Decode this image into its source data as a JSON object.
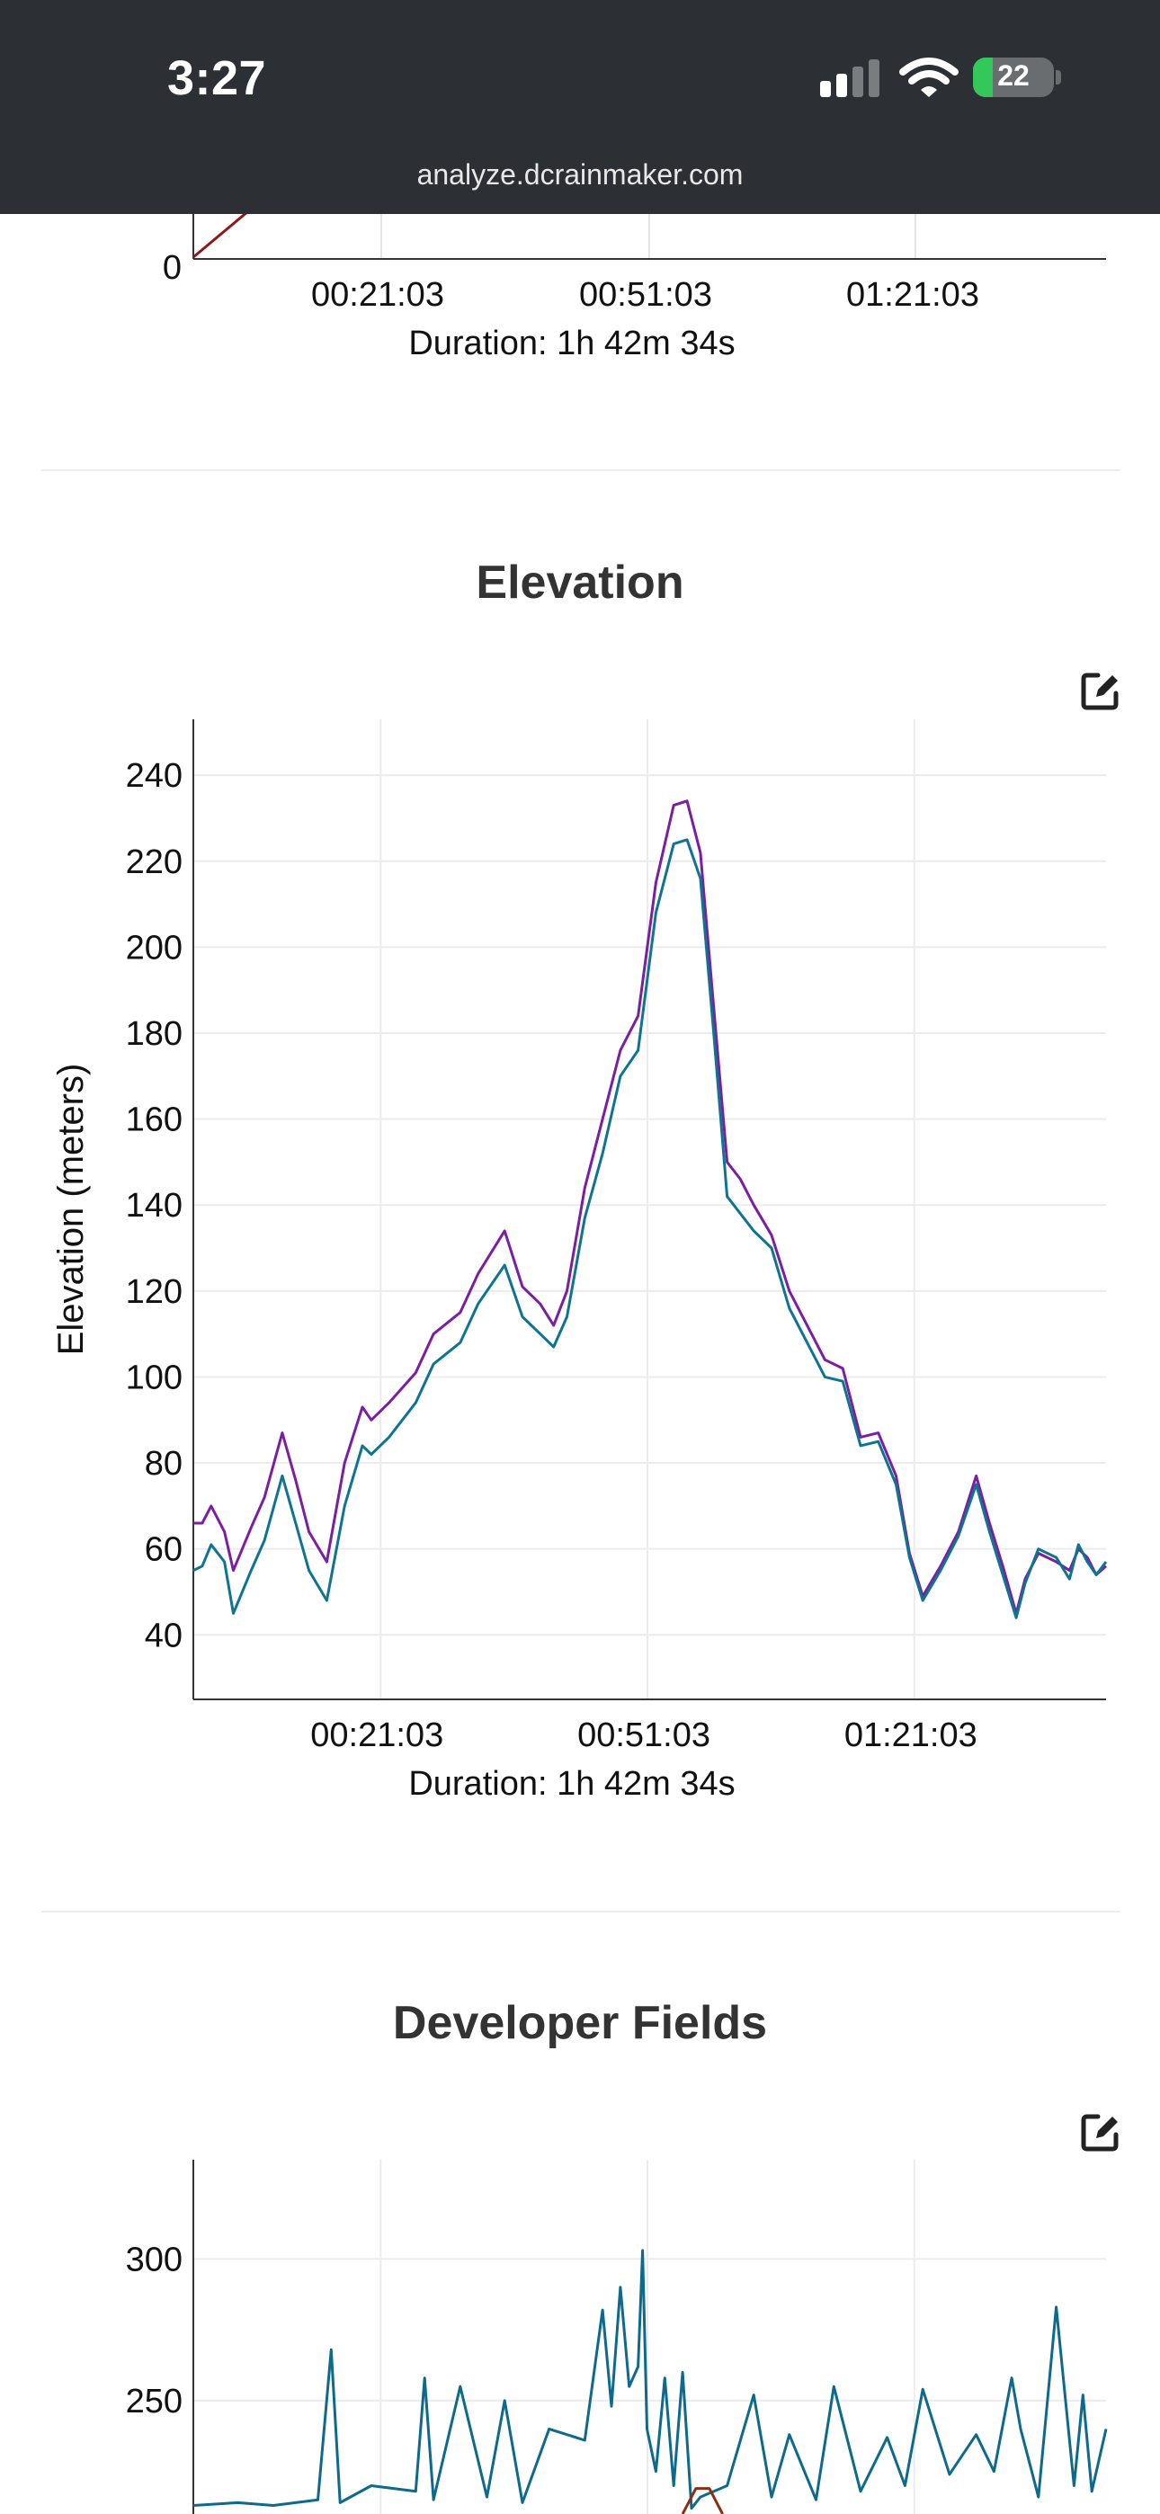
{
  "status_bar": {
    "time": "3:27",
    "battery_level": "22",
    "url": "analyze.dcrainmaker.com"
  },
  "top_chart": {
    "y_tick_visible": "0",
    "x_ticks": [
      "00:21:03",
      "00:51:03",
      "01:21:03"
    ],
    "duration_label": "Duration: 1h 42m 34s",
    "line_color": "#8b1a1a"
  },
  "elevation_section": {
    "title": "Elevation",
    "edit_icon": "edit-icon"
  },
  "developer_fields_section": {
    "title": "Developer Fields",
    "edit_icon": "edit-icon"
  },
  "chart_data": [
    {
      "type": "line",
      "title": "Elevation",
      "xlabel": "Duration: 1h 42m 34s",
      "ylabel": "Elevation (meters)",
      "x_unit": "minutes",
      "x_ticks": [
        "00:21:03",
        "00:51:03",
        "01:21:03"
      ],
      "y_ticks": [
        40,
        60,
        80,
        100,
        120,
        140,
        160,
        180,
        200,
        220,
        240
      ],
      "xlim": [
        0,
        102.6
      ],
      "ylim": [
        25,
        253
      ],
      "grid": true,
      "legend": "none",
      "series": [
        {
          "color": "#7b1fa2",
          "x": [
            0,
            1,
            2,
            3.5,
            4.5,
            5.5,
            6.5,
            8,
            10,
            11.5,
            13,
            15,
            17,
            19,
            20,
            22,
            25,
            27,
            30,
            32,
            35,
            37,
            39,
            40.5,
            42,
            44,
            46,
            48,
            50,
            52,
            54,
            55.5,
            57,
            58.5,
            60,
            61.5,
            63,
            65,
            67,
            69,
            71,
            73,
            75,
            77,
            79,
            80.5,
            82,
            84,
            86,
            88,
            89.5,
            91,
            92.5,
            93.5,
            95,
            97,
            98.5,
            99.5,
            100.5,
            101.5,
            102.6
          ],
          "values": [
            66,
            66,
            70,
            64,
            55,
            60,
            65,
            72,
            87,
            76,
            64,
            57,
            80,
            93,
            90,
            94,
            101,
            110,
            115,
            124,
            134,
            121,
            117,
            112,
            120,
            144,
            160,
            176,
            184,
            215,
            233,
            234,
            222,
            186,
            150,
            146,
            140,
            133,
            120,
            112,
            104,
            102,
            86,
            87,
            77,
            59,
            49,
            56,
            64,
            77,
            66,
            56,
            45,
            53,
            59,
            57,
            55,
            60,
            58,
            54,
            56
          ]
        },
        {
          "color": "#0e7490",
          "x": [
            0,
            1,
            2,
            3.5,
            4.5,
            5.5,
            6.5,
            8,
            10,
            11.5,
            13,
            15,
            17,
            19,
            20,
            22,
            25,
            27,
            30,
            32,
            35,
            37,
            39,
            40.5,
            42,
            44,
            46,
            48,
            50,
            52,
            54,
            55.5,
            57,
            58.5,
            60,
            61.5,
            63,
            65,
            67,
            69,
            71,
            73,
            75,
            77,
            79,
            80.5,
            82,
            84,
            86,
            88,
            89.5,
            91,
            92.5,
            93.5,
            95,
            97,
            98.5,
            99.5,
            100.5,
            101.5,
            102.6
          ],
          "values": [
            55,
            56,
            61,
            57,
            45,
            50,
            55,
            62,
            77,
            66,
            55,
            48,
            70,
            84,
            82,
            86,
            94,
            103,
            108,
            117,
            126,
            114,
            110,
            107,
            114,
            137,
            152,
            170,
            176,
            208,
            224,
            225,
            216,
            180,
            142,
            138,
            134,
            130,
            116,
            108,
            100,
            99,
            84,
            85,
            75,
            58,
            48,
            55,
            63,
            75,
            64,
            54,
            44,
            52,
            60,
            58,
            53,
            61,
            57,
            54,
            57
          ]
        }
      ]
    },
    {
      "type": "line",
      "title": "Developer Fields",
      "x_ticks": [
        "00:21:03",
        "00:51:03",
        "01:21:03"
      ],
      "y_ticks": [
        250,
        300
      ],
      "xlim": [
        0,
        102.6
      ],
      "ylim": [
        210,
        335
      ],
      "grid": true,
      "legend": "none",
      "series": [
        {
          "color": "#0e6a8a",
          "x": [
            0,
            5,
            9,
            14,
            15.5,
            16.5,
            20,
            25,
            26,
            27,
            30,
            33,
            35,
            37,
            40,
            44,
            46,
            47,
            48,
            49,
            50,
            50.5,
            51,
            52,
            53,
            54,
            55,
            56,
            57,
            60,
            63,
            65,
            67,
            70,
            72,
            75,
            78,
            80,
            82,
            85,
            88,
            90,
            92,
            93,
            95,
            97,
            99,
            100,
            101,
            102.6
          ],
          "values": [
            213,
            214,
            213,
            215,
            268,
            214,
            220,
            218,
            258,
            215,
            255,
            216,
            250,
            214,
            240,
            236,
            282,
            248,
            290,
            255,
            262,
            303,
            240,
            225,
            258,
            220,
            260,
            212,
            216,
            220,
            252,
            216,
            238,
            215,
            255,
            218,
            237,
            220,
            254,
            224,
            238,
            225,
            258,
            240,
            216,
            283,
            220,
            252,
            218,
            240
          ]
        },
        {
          "color": "#8b2e16",
          "x": [
            55,
            56.5,
            58,
            59.5
          ],
          "values": [
            210,
            219,
            219,
            210
          ]
        }
      ]
    }
  ]
}
